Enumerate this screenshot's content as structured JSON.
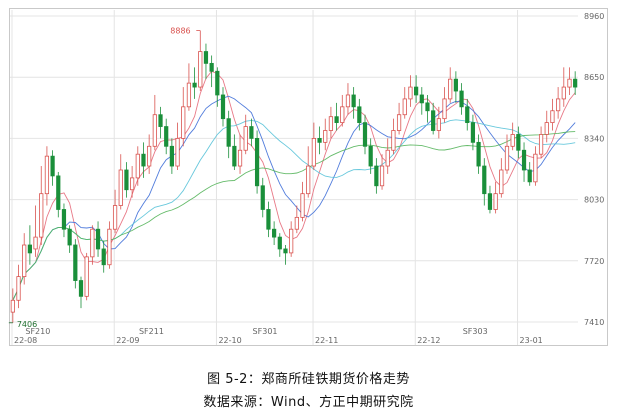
{
  "figure": {
    "caption": "图 5-2：郑商所硅铁期货价格走势",
    "source": "数据来源：Wind、方正中期研究院"
  },
  "colors": {
    "up": "#d9534f",
    "down": "#1a8f3a",
    "ma_red": "#e56a7a",
    "ma_blue": "#3f6fd8",
    "ma_cyan": "#58c2d8",
    "ma_green": "#54b45a",
    "grid": "#e4e4e4",
    "frame": "#c9c9c9"
  },
  "chart_data": {
    "type": "candlestick",
    "ylim": [
      7410,
      8960
    ],
    "y_ticks": [
      7410,
      7720,
      8030,
      8340,
      8650,
      8960
    ],
    "x_ticks": [
      "22-08",
      "22-09",
      "22-10",
      "22-11",
      "22-12",
      "23-01"
    ],
    "contract_labels": [
      "SF210",
      "SF211",
      "SF301",
      "SF303"
    ],
    "annotations": [
      {
        "text": "8886",
        "value": 8886,
        "kind": "high"
      },
      {
        "text": "7406",
        "value": 7406,
        "kind": "low"
      }
    ],
    "candles": [
      [
        7460,
        7520,
        7406,
        7580
      ],
      [
        7520,
        7640,
        7480,
        7700
      ],
      [
        7640,
        7800,
        7600,
        7860
      ],
      [
        7800,
        7760,
        7700,
        7900
      ],
      [
        7780,
        7840,
        7740,
        8000
      ],
      [
        7840,
        8060,
        7800,
        8200
      ],
      [
        8060,
        8250,
        8000,
        8300
      ],
      [
        8250,
        8150,
        8100,
        8280
      ],
      [
        8150,
        7980,
        7940,
        8170
      ],
      [
        7980,
        7880,
        7840,
        8010
      ],
      [
        7880,
        7800,
        7760,
        7900
      ],
      [
        7800,
        7620,
        7580,
        7830
      ],
      [
        7620,
        7540,
        7480,
        7640
      ],
      [
        7540,
        7740,
        7520,
        7760
      ],
      [
        7740,
        7880,
        7700,
        7900
      ],
      [
        7880,
        7780,
        7740,
        7920
      ],
      [
        7780,
        7700,
        7660,
        7820
      ],
      [
        7700,
        7880,
        7680,
        7920
      ],
      [
        7880,
        8000,
        7860,
        8080
      ],
      [
        8000,
        8180,
        7980,
        8260
      ],
      [
        8180,
        8080,
        8040,
        8220
      ],
      [
        8080,
        8140,
        8040,
        8200
      ],
      [
        8140,
        8260,
        8100,
        8300
      ],
      [
        8260,
        8200,
        8140,
        8320
      ],
      [
        8200,
        8300,
        8160,
        8360
      ],
      [
        8300,
        8460,
        8280,
        8560
      ],
      [
        8460,
        8400,
        8340,
        8500
      ],
      [
        8400,
        8300,
        8260,
        8440
      ],
      [
        8300,
        8200,
        8160,
        8340
      ],
      [
        8200,
        8340,
        8180,
        8420
      ],
      [
        8340,
        8500,
        8300,
        8600
      ],
      [
        8500,
        8620,
        8480,
        8720
      ],
      [
        8620,
        8600,
        8540,
        8700
      ],
      [
        8600,
        8780,
        8580,
        8886
      ],
      [
        8780,
        8720,
        8640,
        8820
      ],
      [
        8720,
        8680,
        8600,
        8760
      ],
      [
        8680,
        8560,
        8500,
        8700
      ],
      [
        8560,
        8440,
        8400,
        8600
      ],
      [
        8440,
        8300,
        8240,
        8480
      ],
      [
        8300,
        8200,
        8180,
        8360
      ],
      [
        8200,
        8280,
        8160,
        8360
      ],
      [
        8280,
        8400,
        8260,
        8460
      ],
      [
        8400,
        8340,
        8300,
        8440
      ],
      [
        8340,
        8100,
        8060,
        8380
      ],
      [
        8100,
        7980,
        7940,
        8140
      ],
      [
        7980,
        7880,
        7840,
        8020
      ],
      [
        7880,
        7840,
        7800,
        7920
      ],
      [
        7840,
        7780,
        7740,
        7860
      ],
      [
        7780,
        7760,
        7700,
        7800
      ],
      [
        7760,
        7880,
        7740,
        7920
      ],
      [
        7880,
        7940,
        7860,
        8000
      ],
      [
        7940,
        8060,
        7920,
        8120
      ],
      [
        8060,
        8200,
        8040,
        8300
      ],
      [
        8200,
        8340,
        8180,
        8420
      ],
      [
        8340,
        8320,
        8260,
        8400
      ],
      [
        8320,
        8380,
        8280,
        8440
      ],
      [
        8380,
        8450,
        8340,
        8500
      ],
      [
        8450,
        8420,
        8380,
        8520
      ],
      [
        8420,
        8500,
        8400,
        8560
      ],
      [
        8500,
        8560,
        8460,
        8620
      ],
      [
        8560,
        8500,
        8440,
        8600
      ],
      [
        8500,
        8420,
        8380,
        8540
      ],
      [
        8420,
        8300,
        8260,
        8460
      ],
      [
        8300,
        8200,
        8160,
        8340
      ],
      [
        8200,
        8100,
        8060,
        8240
      ],
      [
        8100,
        8200,
        8080,
        8260
      ],
      [
        8200,
        8280,
        8160,
        8340
      ],
      [
        8280,
        8380,
        8260,
        8440
      ],
      [
        8380,
        8460,
        8360,
        8520
      ],
      [
        8460,
        8540,
        8440,
        8600
      ],
      [
        8540,
        8600,
        8500,
        8660
      ],
      [
        8600,
        8560,
        8520,
        8660
      ],
      [
        8560,
        8520,
        8460,
        8600
      ],
      [
        8520,
        8480,
        8420,
        8560
      ],
      [
        8480,
        8380,
        8360,
        8520
      ],
      [
        8380,
        8440,
        8340,
        8500
      ],
      [
        8440,
        8540,
        8420,
        8600
      ],
      [
        8540,
        8640,
        8520,
        8700
      ],
      [
        8640,
        8580,
        8520,
        8680
      ],
      [
        8580,
        8500,
        8460,
        8620
      ],
      [
        8500,
        8420,
        8380,
        8540
      ],
      [
        8420,
        8320,
        8280,
        8460
      ],
      [
        8320,
        8200,
        8160,
        8360
      ],
      [
        8200,
        8060,
        8000,
        8240
      ],
      [
        8060,
        7980,
        7960,
        8100
      ],
      [
        7980,
        8060,
        7960,
        8120
      ],
      [
        8060,
        8180,
        8040,
        8240
      ],
      [
        8180,
        8300,
        8160,
        8360
      ],
      [
        8300,
        8360,
        8280,
        8420
      ],
      [
        8360,
        8280,
        8240,
        8400
      ],
      [
        8280,
        8180,
        8120,
        8320
      ],
      [
        8180,
        8120,
        8100,
        8220
      ],
      [
        8120,
        8260,
        8100,
        8300
      ],
      [
        8260,
        8360,
        8240,
        8400
      ],
      [
        8360,
        8420,
        8320,
        8480
      ],
      [
        8420,
        8480,
        8380,
        8540
      ],
      [
        8480,
        8540,
        8440,
        8600
      ],
      [
        8540,
        8600,
        8500,
        8700
      ],
      [
        8600,
        8640,
        8560,
        8700
      ],
      [
        8640,
        8600,
        8560,
        8680
      ]
    ]
  }
}
